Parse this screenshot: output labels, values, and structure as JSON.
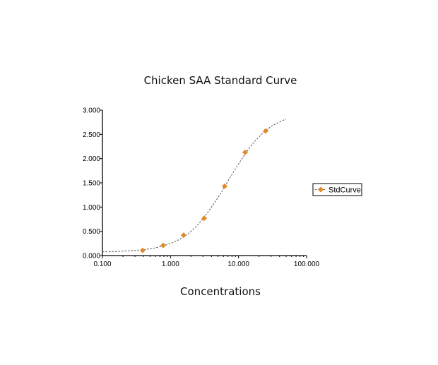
{
  "chart_data": {
    "type": "scatter",
    "title": "Chicken SAA Standard Curve",
    "xlabel": "Concentrations",
    "ylabel": "",
    "xscale": "log",
    "xlim": [
      0.1,
      100
    ],
    "ylim": [
      0,
      3
    ],
    "xticks": [
      "0.100",
      "1.000",
      "10.000",
      "100.000"
    ],
    "yticks": [
      "0.000",
      "0.500",
      "1.000",
      "1.500",
      "2.000",
      "2.500",
      "3.000"
    ],
    "grid": false,
    "legend": "right",
    "series": [
      {
        "name": "StdCurve",
        "color": "#e08a2a",
        "marker": "diamond",
        "x": [
          0.39,
          0.78,
          1.56,
          3.125,
          6.25,
          12.5,
          25
        ],
        "y": [
          0.107,
          0.21,
          0.42,
          0.77,
          1.43,
          2.13,
          2.57
        ]
      }
    ],
    "fit_curve": {
      "style": "dashed",
      "color": "#555555",
      "x": [
        0.1,
        0.2,
        0.5,
        1,
        1.5,
        2,
        3,
        5,
        7,
        10,
        15,
        20,
        30,
        50
      ],
      "y": [
        0.078,
        0.09,
        0.14,
        0.25,
        0.37,
        0.5,
        0.76,
        1.2,
        1.54,
        1.89,
        2.25,
        2.45,
        2.66,
        2.82
      ]
    }
  }
}
